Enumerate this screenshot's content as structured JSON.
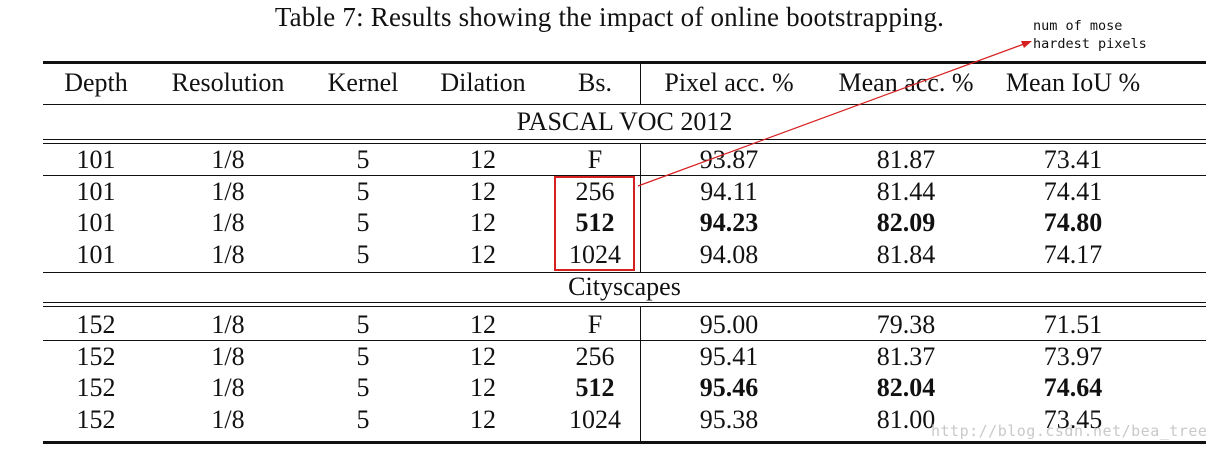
{
  "caption": "Table 7: Results showing the impact of online bootstrapping.",
  "annotation": {
    "line1": "num of mose",
    "line2": "hardest pixels",
    "color": "#d62020"
  },
  "headers": [
    "Depth",
    "Resolution",
    "Kernel",
    "Dilation",
    "Bs.",
    "Pixel acc. %",
    "Mean acc. %",
    "Mean IoU %"
  ],
  "sections": [
    {
      "title": "PASCAL VOC 2012",
      "rows": [
        [
          "101",
          "1/8",
          "5",
          "12",
          "F",
          "93.87",
          "81.87",
          "73.41"
        ],
        [
          "101",
          "1/8",
          "5",
          "12",
          "256",
          "94.11",
          "81.44",
          "74.41"
        ],
        [
          "101",
          "1/8",
          "5",
          "12",
          "512",
          "94.23",
          "82.09",
          "74.80"
        ],
        [
          "101",
          "1/8",
          "5",
          "12",
          "1024",
          "94.08",
          "81.84",
          "74.17"
        ]
      ]
    },
    {
      "title": "Cityscapes",
      "rows": [
        [
          "152",
          "1/8",
          "5",
          "12",
          "F",
          "95.00",
          "79.38",
          "71.51"
        ],
        [
          "152",
          "1/8",
          "5",
          "12",
          "256",
          "95.41",
          "81.37",
          "73.97"
        ],
        [
          "152",
          "1/8",
          "5",
          "12",
          "512",
          "95.46",
          "82.04",
          "74.64"
        ],
        [
          "152",
          "1/8",
          "5",
          "12",
          "1024",
          "95.38",
          "81.00",
          "73.45"
        ]
      ]
    }
  ],
  "bold_row_index": 2,
  "bold_from_column": 4,
  "watermark": "http://blog.csdn.net/bea_tree"
}
